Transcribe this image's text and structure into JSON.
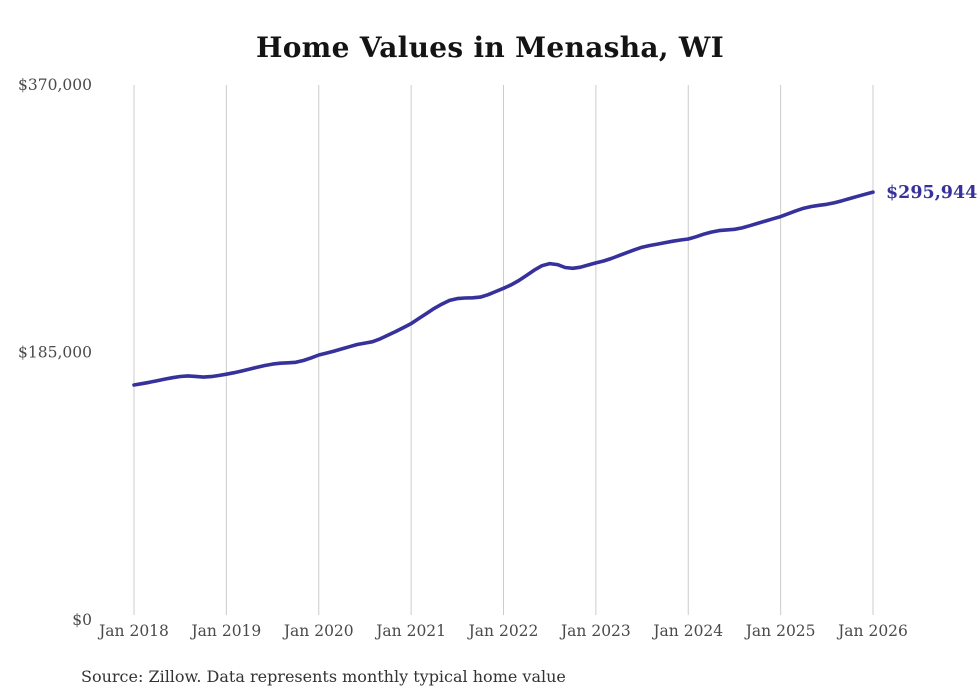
{
  "title": "Home Values in Menasha, WI",
  "source_note": "Source: Zillow. Data represents monthly typical home value",
  "chart_data": {
    "type": "line",
    "title": "Home Values in Menasha, WI",
    "series_name": "Monthly typical home value",
    "x_start_month": "2018-01",
    "x_interval": "monthly",
    "x_tick_labels": [
      "Jan 2018",
      "Jan 2019",
      "Jan 2020",
      "Jan 2021",
      "Jan 2022",
      "Jan 2023",
      "Jan 2024",
      "Jan 2025",
      "Jan 2026"
    ],
    "y_ticks": [
      {
        "label": "$0",
        "value": 0
      },
      {
        "label": "$185,000",
        "value": 185000
      },
      {
        "label": "$370,000",
        "value": 370000
      }
    ],
    "ylim": [
      0,
      370000
    ],
    "grid": "vertical-only",
    "legend": "none",
    "line_color": "#37329b",
    "grid_color": "#cccccc",
    "latest_value": 295944,
    "latest_value_label": "$295,944",
    "values": [
      162500,
      163400,
      164400,
      165500,
      166600,
      167600,
      168400,
      168800,
      168500,
      168000,
      168300,
      169100,
      170000,
      171000,
      172200,
      173500,
      174800,
      176000,
      177000,
      177600,
      177900,
      178200,
      179500,
      181300,
      183300,
      184600,
      186000,
      187500,
      189000,
      190500,
      191500,
      192500,
      194500,
      197000,
      199500,
      202200,
      205000,
      208500,
      212000,
      215500,
      218500,
      221000,
      222300,
      222700,
      222800,
      223300,
      225000,
      227200,
      229400,
      231800,
      234800,
      238300,
      242000,
      245000,
      246500,
      245800,
      243800,
      243200,
      244000,
      245500,
      247000,
      248300,
      250000,
      252000,
      254000,
      256000,
      257800,
      259000,
      260000,
      261000,
      262000,
      262800,
      263500,
      265000,
      266800,
      268300,
      269300,
      269800,
      270200,
      271200,
      272700,
      274300,
      275900,
      277500,
      279000,
      281000,
      283000,
      284800,
      286000,
      286800,
      287500,
      288600,
      290000,
      291500,
      293000,
      294500,
      295944
    ]
  }
}
